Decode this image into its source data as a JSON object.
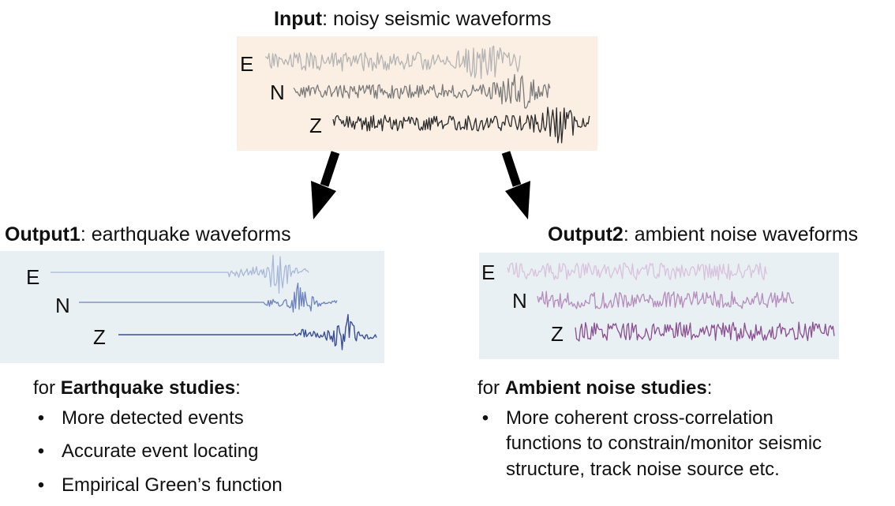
{
  "input": {
    "title_bold": "Input",
    "title_rest": ": noisy seismic waveforms",
    "bg_color": "#fbefe3",
    "traces": [
      {
        "label": "E",
        "color": "#b4b4b4"
      },
      {
        "label": "N",
        "color": "#7a7a7a"
      },
      {
        "label": "Z",
        "color": "#2a2a2a"
      }
    ]
  },
  "output1": {
    "title_bold": "Output1",
    "title_rest": ": earthquake waveforms",
    "bg_color": "#e8f0f3",
    "traces": [
      {
        "label": "E",
        "color": "#a9b8d8"
      },
      {
        "label": "N",
        "color": "#6c82bf"
      },
      {
        "label": "Z",
        "color": "#3c4f96"
      }
    ],
    "studies_prefix": "for ",
    "studies_bold": "Earthquake studies",
    "studies_suffix": ":",
    "bullets": [
      "More detected events",
      "Accurate event locating",
      "Empirical Green’s function"
    ]
  },
  "output2": {
    "title_bold": "Output2",
    "title_rest": ": ambient noise waveforms",
    "bg_color": "#e8f0f3",
    "traces": [
      {
        "label": "E",
        "color": "#d9c2dc"
      },
      {
        "label": "N",
        "color": "#b58dbc"
      },
      {
        "label": "Z",
        "color": "#8a4f91"
      }
    ],
    "studies_prefix": "for ",
    "studies_bold": "Ambient noise studies",
    "studies_suffix": ":",
    "bullets": [
      "More coherent cross-correlation functions to constrain/monitor seismic structure, track noise source etc."
    ]
  },
  "bullet_glyph": "•"
}
